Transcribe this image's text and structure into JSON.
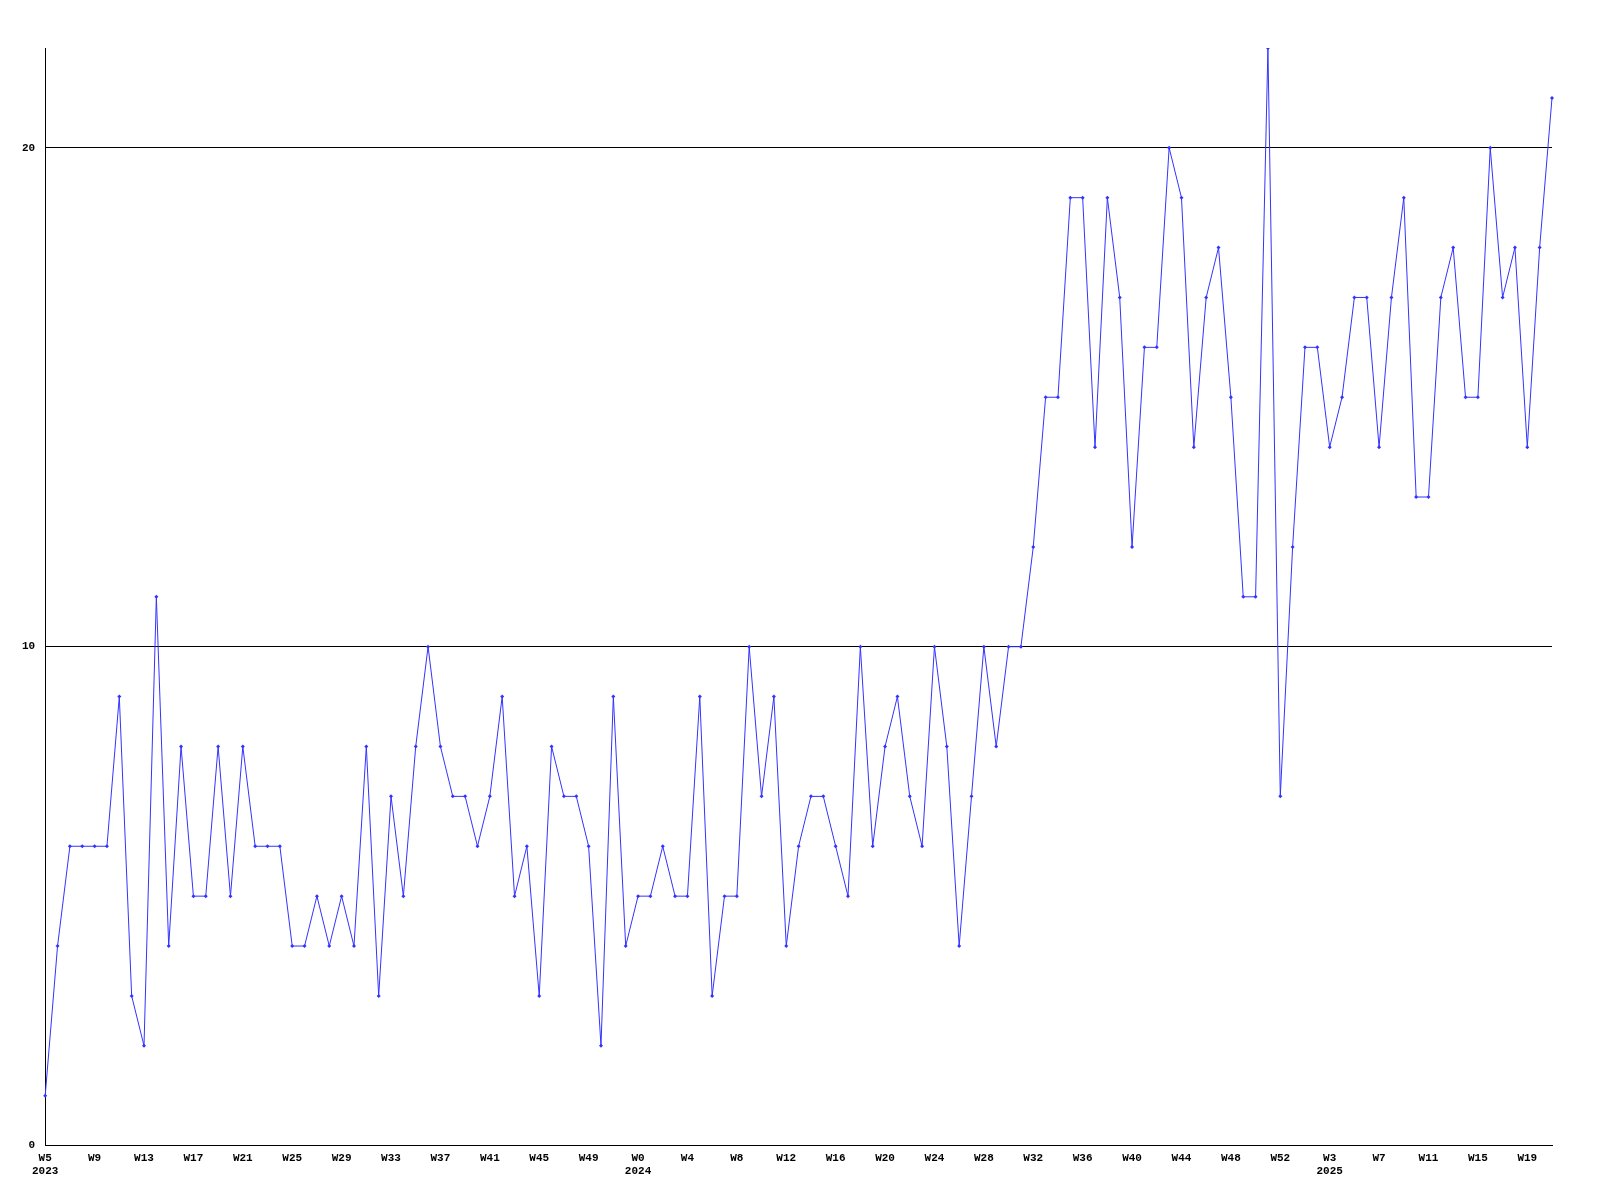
{
  "chart_data": {
    "type": "line",
    "categories": [
      "W5\n2023",
      null,
      null,
      null,
      "W9",
      null,
      null,
      null,
      "W13",
      null,
      null,
      null,
      "W17",
      null,
      null,
      null,
      "W21",
      null,
      null,
      null,
      "W25",
      null,
      null,
      null,
      "W29",
      null,
      null,
      null,
      "W33",
      null,
      null,
      null,
      "W37",
      null,
      null,
      null,
      "W41",
      null,
      null,
      null,
      "W45",
      null,
      null,
      null,
      "W49",
      null,
      null,
      null,
      "W0\n2024",
      null,
      null,
      null,
      "W4",
      null,
      null,
      null,
      "W8",
      null,
      null,
      null,
      "W12",
      null,
      null,
      null,
      "W16",
      null,
      null,
      null,
      "W20",
      null,
      null,
      null,
      "W24",
      null,
      null,
      null,
      "W28",
      null,
      null,
      null,
      "W32",
      null,
      null,
      null,
      "W36",
      null,
      null,
      null,
      "W40",
      null,
      null,
      null,
      "W44",
      null,
      null,
      null,
      "W48",
      null,
      null,
      null,
      "W52",
      null,
      null,
      null,
      "W3\n2025",
      null,
      null,
      null,
      "W7",
      null,
      null,
      null,
      "W11",
      null,
      null,
      null,
      "W15",
      null,
      null,
      null,
      "W19",
      null,
      null
    ],
    "series": [
      {
        "color": "#3333ff",
        "values": [
          1,
          4,
          6,
          6,
          6,
          6,
          9,
          3,
          2,
          11,
          4,
          8,
          5,
          5,
          8,
          5,
          8,
          6,
          6,
          6,
          4,
          4,
          5,
          4,
          5,
          4,
          8,
          3,
          7,
          5,
          8,
          10,
          8,
          7,
          7,
          6,
          7,
          9,
          5,
          6,
          3,
          8,
          7,
          7,
          6,
          2,
          9,
          4,
          5,
          5,
          6,
          5,
          5,
          9,
          3,
          5,
          5,
          10,
          7,
          9,
          4,
          6,
          7,
          7,
          6,
          5,
          10,
          6,
          8,
          9,
          7,
          6,
          10,
          8,
          4,
          7,
          10,
          8,
          10,
          10,
          12,
          15,
          15,
          19,
          19,
          14,
          19,
          17,
          12,
          16,
          16,
          20,
          19,
          14,
          17,
          18,
          15,
          11,
          11,
          22,
          7,
          12,
          16,
          16,
          14,
          15,
          17,
          17,
          14,
          17,
          19,
          13,
          13,
          17,
          18,
          15,
          15,
          20,
          17,
          18,
          14,
          18,
          21
        ]
      }
    ],
    "ylim": [
      0,
      22
    ],
    "yticks": [
      0,
      10,
      20
    ],
    "grid": "y",
    "legend": false,
    "marker": "diamond",
    "line_style": "solid"
  }
}
